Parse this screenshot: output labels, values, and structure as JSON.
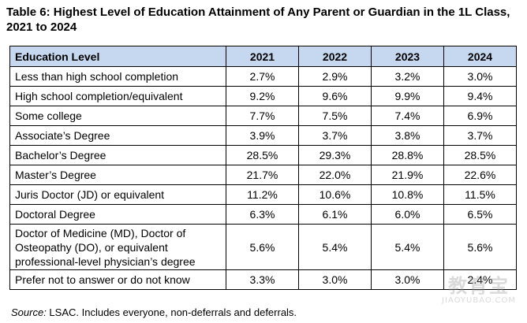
{
  "title": "Table 6: Highest Level of Education Attainment of Any Parent or Guardian in the 1L Class, 2021 to 2024",
  "table": {
    "headers": [
      "Education Level",
      "2021",
      "2022",
      "2023",
      "2024"
    ],
    "rows": [
      [
        "Less than high school completion",
        "2.7%",
        "2.9%",
        "3.2%",
        "3.0%"
      ],
      [
        "High school completion/equivalent",
        "9.2%",
        "9.6%",
        "9.9%",
        "9.4%"
      ],
      [
        "Some college",
        "7.7%",
        "7.5%",
        "7.4%",
        "6.9%"
      ],
      [
        "Associate’s Degree",
        "3.9%",
        "3.7%",
        "3.8%",
        "3.7%"
      ],
      [
        "Bachelor’s Degree",
        "28.5%",
        "29.3%",
        "28.8%",
        "28.5%"
      ],
      [
        "Master’s Degree",
        "21.7%",
        "22.0%",
        "21.9%",
        "22.6%"
      ],
      [
        "Juris Doctor (JD) or equivalent",
        "11.2%",
        "10.6%",
        "10.8%",
        "11.5%"
      ],
      [
        "Doctoral Degree",
        "6.3%",
        "6.1%",
        "6.0%",
        "6.5%"
      ],
      [
        "Doctor of Medicine (MD), Doctor of Osteopathy (DO), or equivalent professional-level physician’s degree",
        "5.6%",
        "5.4%",
        "5.4%",
        "5.6%"
      ],
      [
        "Prefer not to answer or do not know",
        "3.3%",
        "3.0%",
        "3.0%",
        "2.4%"
      ]
    ]
  },
  "source": {
    "label": "Source:",
    "text": " LSAC. Includes everyone, non-deferrals and deferrals."
  },
  "watermark": {
    "main": "教育宝",
    "sub": "JIAOYUBAO.COM"
  },
  "colors": {
    "header_bg": "#c5d8ef"
  }
}
